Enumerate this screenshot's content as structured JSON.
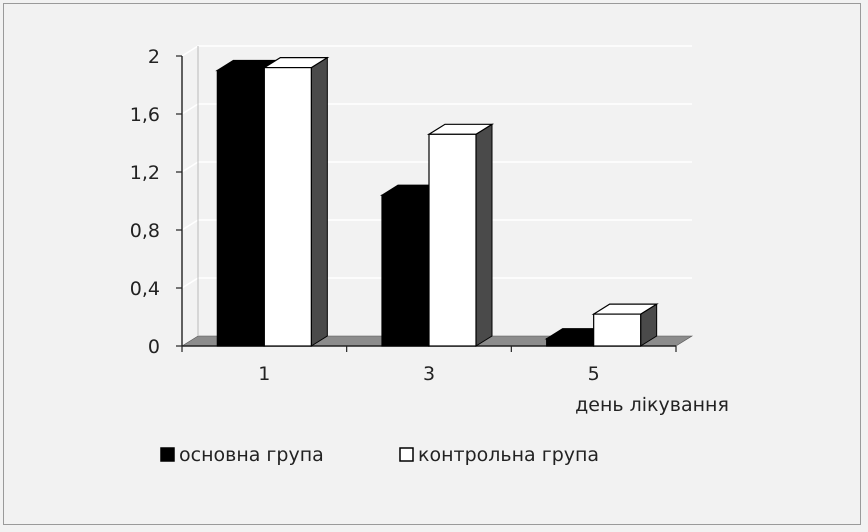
{
  "chart_data": {
    "type": "bar",
    "categories": [
      "1",
      "3",
      "5"
    ],
    "series": [
      {
        "name": "основна група",
        "values": [
          1.9,
          1.04,
          0.05
        ],
        "color": "#000000"
      },
      {
        "name": "контрольна група",
        "values": [
          1.92,
          1.46,
          0.22
        ],
        "color": "#ffffff"
      }
    ],
    "ylim": [
      0,
      2
    ],
    "yticks": [
      "0",
      "0,4",
      "0,8",
      "1,2",
      "1,6",
      "2"
    ],
    "ytick_values": [
      0,
      0.4,
      0.8,
      1.2,
      1.6,
      2
    ],
    "xlabel": "день лікування",
    "ylabel": "",
    "title": "",
    "grid": true,
    "style": "3d-clustered",
    "legend_position": "bottom"
  }
}
